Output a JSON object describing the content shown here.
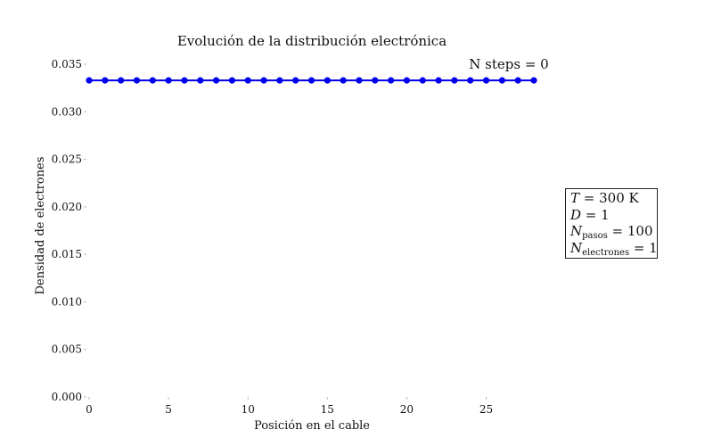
{
  "chart_data": {
    "type": "line",
    "title": "Evolución de la distribución electrónica",
    "xlabel": "Posición en el cable",
    "ylabel": "Densidad de electrones",
    "xlim": [
      0,
      28
    ],
    "ylim": [
      0,
      0.035
    ],
    "x_ticks": [
      "0",
      "5",
      "10",
      "15",
      "20",
      "25"
    ],
    "y_ticks": [
      "0.000",
      "0.005",
      "0.010",
      "0.015",
      "0.020",
      "0.025",
      "0.030",
      "0.035"
    ],
    "grid": false,
    "line_color": "#0000ee",
    "series": [
      {
        "x": [
          0,
          1,
          2,
          3,
          4,
          5,
          6,
          7,
          8,
          9,
          10,
          11,
          12,
          13,
          14,
          15,
          16,
          17,
          18,
          19,
          20,
          21,
          22,
          23,
          24,
          25,
          26,
          27,
          28
        ],
        "values": [
          0.0333,
          0.0333,
          0.0333,
          0.0333,
          0.0333,
          0.0333,
          0.0333,
          0.0333,
          0.0333,
          0.0333,
          0.0333,
          0.0333,
          0.0333,
          0.0333,
          0.0333,
          0.0333,
          0.0333,
          0.0333,
          0.0333,
          0.0333,
          0.0333,
          0.0333,
          0.0333,
          0.0333,
          0.0333,
          0.0333,
          0.0333,
          0.0333,
          0.0333
        ]
      }
    ],
    "annotation": "N steps = 0",
    "info_box": {
      "T_symbol": "T",
      "T_value": " = 300 K",
      "D_symbol": "D",
      "D_value": " = 1",
      "Npasos_symbol": "N",
      "Npasos_sub": "pasos",
      "Npasos_value": " = 100",
      "Nelec_symbol": "N",
      "Nelec_sub": "electrones",
      "Nelec_value": " = 1"
    }
  }
}
